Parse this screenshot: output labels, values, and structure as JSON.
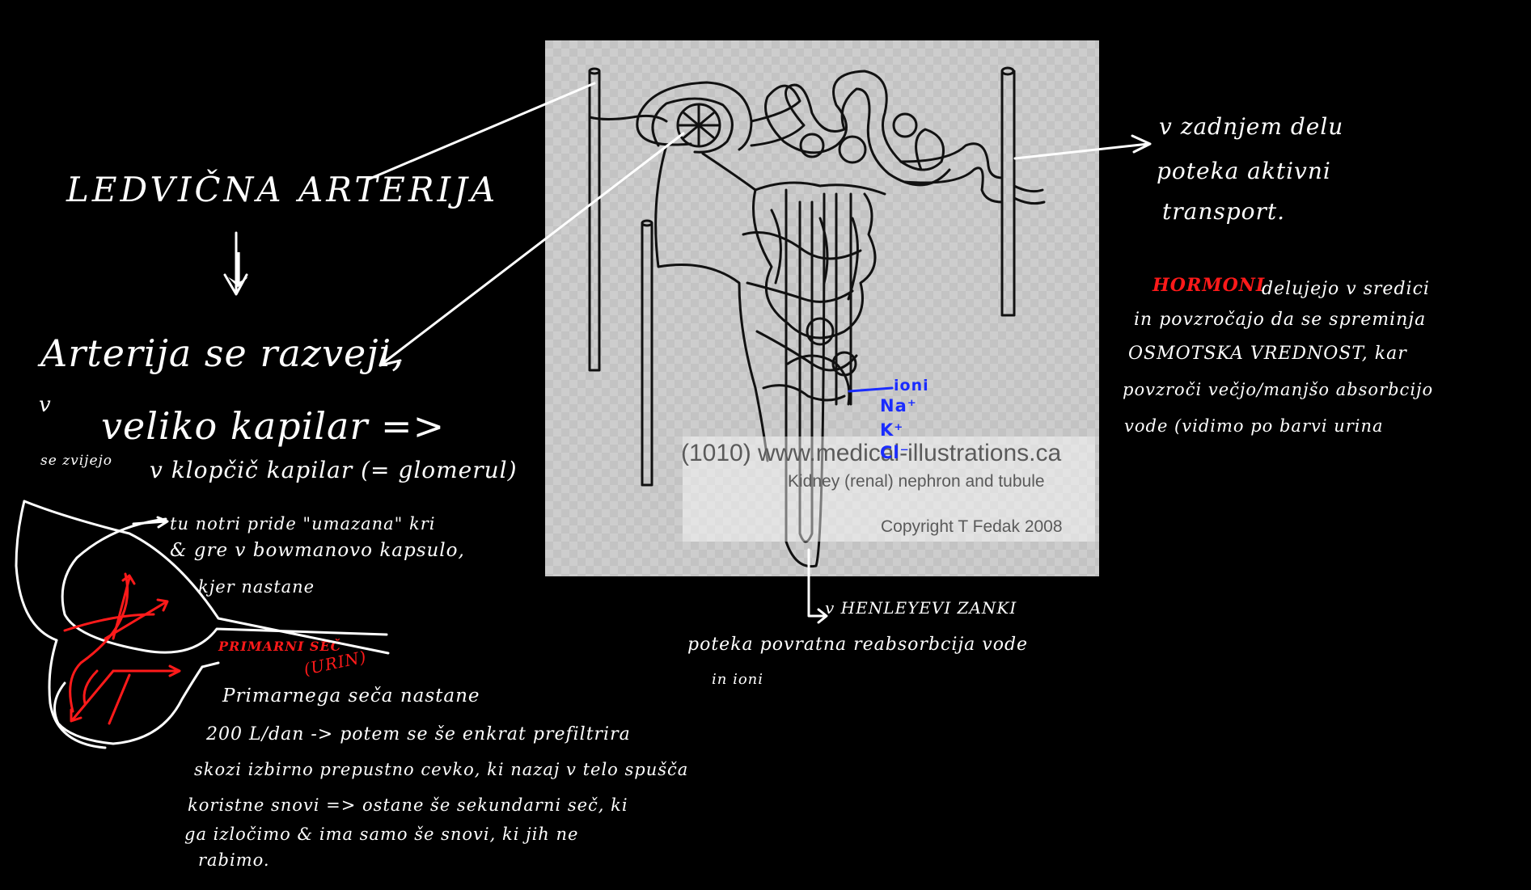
{
  "watermark": {
    "url": "(1010) www.medical-illustrations.ca",
    "subtitle": "Kidney (renal) nephron and tubule",
    "copyright": "Copyright T Fedak 2008"
  },
  "ions": {
    "label": "ioni",
    "na": "Na⁺",
    "k": "K⁺",
    "cl": "Cl⁻"
  },
  "notes": {
    "renal_artery": "LEDVIČNA ARTERIJA",
    "down_arrow": "↓",
    "artery_splits": "Arterija se razveji,",
    "into_capillaries_prefix": "v",
    "into_capillaries": "veliko kapilar =>",
    "tangle_prefix": "se zvijejo",
    "tangle": "v klopčič kapilar (= glomerul)",
    "dirty_blood_1": "tu notri pride \"umazana\" kri",
    "dirty_blood_2": "& gre v bowmanovo kapsulo,",
    "dirty_blood_3": "kjer nastane",
    "primary_urine": "PRIMARNI SEČ",
    "primary_urine_paren": "(URIN)",
    "primary_1": "Primarnega seča nastane",
    "primary_2": "200 L/dan -> potem se še enkrat prefiltrira",
    "primary_3": "skozi izbirno prepustno cevko, ki nazaj v telo spušča",
    "primary_4": "koristne snovi => ostane še sekundarni seč, ki",
    "primary_5": "ga izločimo & ima samo še snovi, ki jih ne",
    "primary_6": "rabimo.",
    "distal_1": "v zadnjem delu",
    "distal_2": "poteka aktivni",
    "distal_3": "transport.",
    "hormones_word": "HORMONI",
    "hormones_1": "delujejo v sredici",
    "hormones_2": "in povzročajo da se spreminja",
    "hormones_3": "OSMOTSKA VREDNOST, kar",
    "hormones_4": "povzroči večjo/manjšo absorbcijo",
    "hormones_5": "vode (vidimo po barvi urina",
    "henle_1": "v HENLEYEVI ZANKI",
    "henle_2": "poteka povratna reabsorbcija vode",
    "henle_3": "in ioni"
  },
  "colors": {
    "background": "#000000",
    "ink": "#ffffff",
    "red_ink": "#ff1a1a",
    "blue_ink": "#1a2cff",
    "figure_bg": "#cfcfcf"
  }
}
